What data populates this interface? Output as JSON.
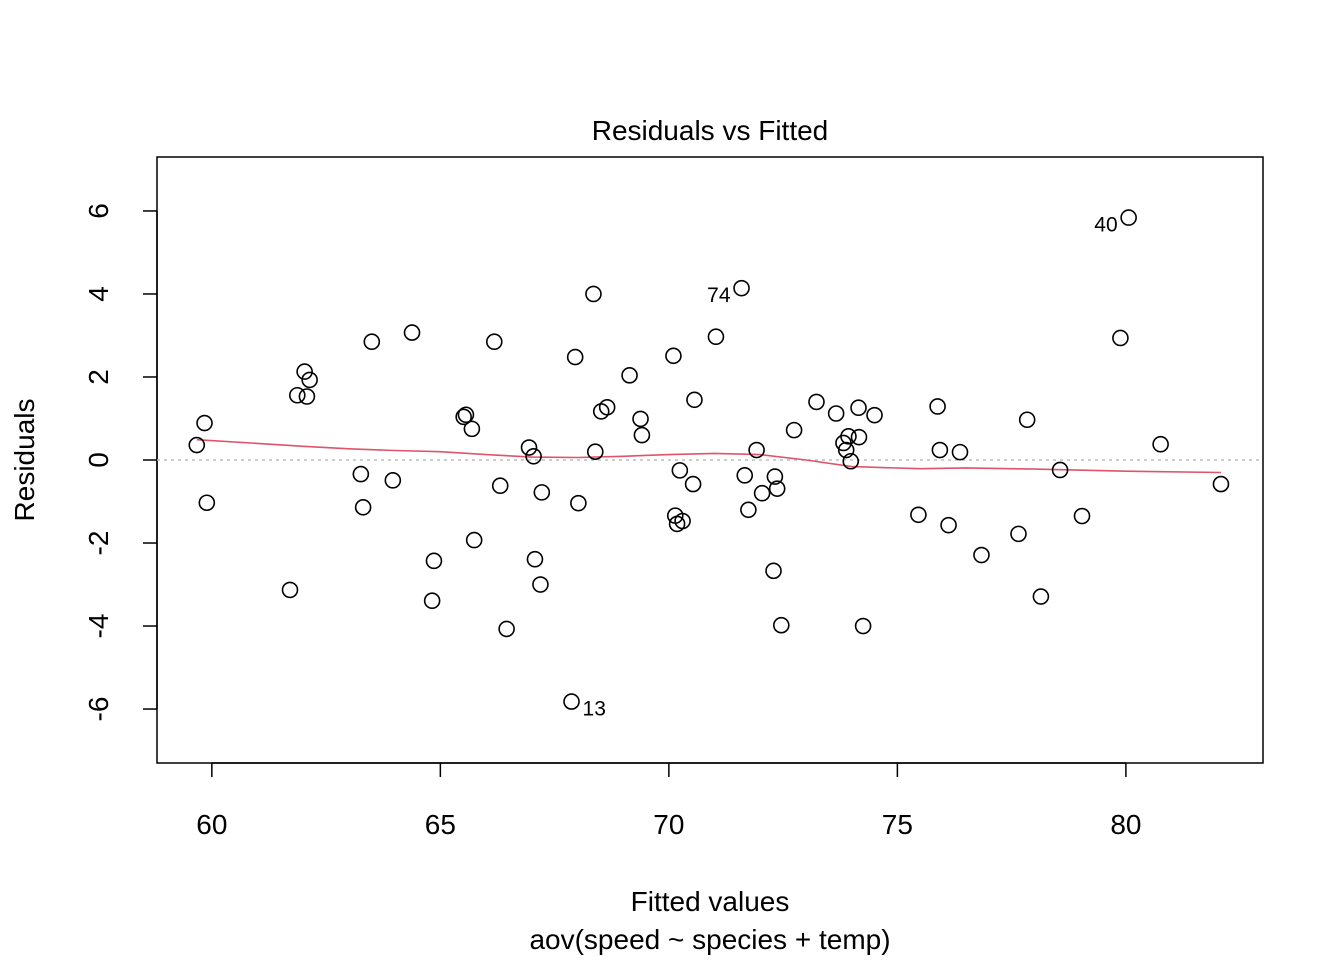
{
  "chart_data": {
    "type": "scatter",
    "title": "Residuals vs Fitted",
    "xlabel": "Fitted values",
    "subtitle": "aov(speed ~ species + temp)",
    "ylabel": "Residuals",
    "xlim": [
      58.8,
      83.0
    ],
    "ylim": [
      -7.3,
      7.3
    ],
    "xticks": [
      60,
      65,
      70,
      75,
      80
    ],
    "yticks": [
      -6,
      -4,
      -2,
      0,
      2,
      4,
      6
    ],
    "grid": false,
    "reference_line": {
      "y": 0,
      "style": "dotted",
      "color": "#bebebe"
    },
    "point_color": "#000000",
    "smooth_color": "#df536b",
    "points": [
      {
        "x": 59.67,
        "y": 0.36
      },
      {
        "x": 59.84,
        "y": 0.89
      },
      {
        "x": 59.89,
        "y": -1.03
      },
      {
        "x": 61.71,
        "y": -3.13
      },
      {
        "x": 61.87,
        "y": 1.56
      },
      {
        "x": 62.03,
        "y": 2.13
      },
      {
        "x": 62.08,
        "y": 1.53
      },
      {
        "x": 62.14,
        "y": 1.93
      },
      {
        "x": 63.26,
        "y": -0.34
      },
      {
        "x": 63.31,
        "y": -1.14
      },
      {
        "x": 63.5,
        "y": 2.85
      },
      {
        "x": 63.96,
        "y": -0.49
      },
      {
        "x": 64.38,
        "y": 3.07
      },
      {
        "x": 64.82,
        "y": -3.39
      },
      {
        "x": 64.86,
        "y": -2.43
      },
      {
        "x": 65.51,
        "y": 1.04
      },
      {
        "x": 65.56,
        "y": 1.09
      },
      {
        "x": 65.69,
        "y": 0.75
      },
      {
        "x": 65.74,
        "y": -1.93
      },
      {
        "x": 66.18,
        "y": 2.85
      },
      {
        "x": 66.31,
        "y": -0.62
      },
      {
        "x": 66.45,
        "y": -4.07
      },
      {
        "x": 66.94,
        "y": 0.3
      },
      {
        "x": 67.04,
        "y": 0.09
      },
      {
        "x": 67.07,
        "y": -2.39
      },
      {
        "x": 67.19,
        "y": -3.0
      },
      {
        "x": 67.22,
        "y": -0.78
      },
      {
        "x": 67.87,
        "y": -5.82,
        "label": "13"
      },
      {
        "x": 67.95,
        "y": 2.48
      },
      {
        "x": 68.02,
        "y": -1.04
      },
      {
        "x": 68.35,
        "y": 4.0
      },
      {
        "x": 68.39,
        "y": 0.2
      },
      {
        "x": 68.52,
        "y": 1.17
      },
      {
        "x": 68.65,
        "y": 1.27
      },
      {
        "x": 69.14,
        "y": 2.04
      },
      {
        "x": 69.38,
        "y": 0.99
      },
      {
        "x": 69.41,
        "y": 0.6
      },
      {
        "x": 70.1,
        "y": 2.51
      },
      {
        "x": 70.14,
        "y": -1.34
      },
      {
        "x": 70.18,
        "y": -1.54
      },
      {
        "x": 70.24,
        "y": -0.25
      },
      {
        "x": 70.3,
        "y": -1.47
      },
      {
        "x": 70.53,
        "y": -0.58
      },
      {
        "x": 70.56,
        "y": 1.45
      },
      {
        "x": 71.03,
        "y": 2.97
      },
      {
        "x": 71.59,
        "y": 4.14,
        "label": "74"
      },
      {
        "x": 71.66,
        "y": -0.37
      },
      {
        "x": 71.74,
        "y": -1.2
      },
      {
        "x": 71.92,
        "y": 0.24
      },
      {
        "x": 72.04,
        "y": -0.8
      },
      {
        "x": 72.29,
        "y": -2.67
      },
      {
        "x": 72.32,
        "y": -0.4
      },
      {
        "x": 72.37,
        "y": -0.69
      },
      {
        "x": 72.46,
        "y": -3.98
      },
      {
        "x": 72.74,
        "y": 0.72
      },
      {
        "x": 73.23,
        "y": 1.4
      },
      {
        "x": 73.66,
        "y": 1.12
      },
      {
        "x": 73.82,
        "y": 0.41
      },
      {
        "x": 73.88,
        "y": 0.24
      },
      {
        "x": 73.93,
        "y": 0.57
      },
      {
        "x": 73.98,
        "y": -0.03
      },
      {
        "x": 74.15,
        "y": 1.26
      },
      {
        "x": 74.16,
        "y": 0.55
      },
      {
        "x": 74.25,
        "y": -4.0
      },
      {
        "x": 74.5,
        "y": 1.08
      },
      {
        "x": 75.46,
        "y": -1.32
      },
      {
        "x": 75.88,
        "y": 1.29
      },
      {
        "x": 75.93,
        "y": 0.24
      },
      {
        "x": 76.12,
        "y": -1.57
      },
      {
        "x": 76.37,
        "y": 0.19
      },
      {
        "x": 76.84,
        "y": -2.29
      },
      {
        "x": 77.65,
        "y": -1.78
      },
      {
        "x": 77.84,
        "y": 0.97
      },
      {
        "x": 78.14,
        "y": -3.29
      },
      {
        "x": 78.56,
        "y": -0.24
      },
      {
        "x": 79.04,
        "y": -1.35
      },
      {
        "x": 79.88,
        "y": 2.94
      },
      {
        "x": 80.06,
        "y": 5.84,
        "label": "40"
      },
      {
        "x": 80.76,
        "y": 0.38
      },
      {
        "x": 82.08,
        "y": -0.58
      }
    ],
    "smooth": [
      {
        "x": 59.67,
        "y": 0.49
      },
      {
        "x": 61.0,
        "y": 0.4
      },
      {
        "x": 62.0,
        "y": 0.33
      },
      {
        "x": 63.0,
        "y": 0.27
      },
      {
        "x": 64.0,
        "y": 0.23
      },
      {
        "x": 65.0,
        "y": 0.2
      },
      {
        "x": 66.0,
        "y": 0.13
      },
      {
        "x": 67.0,
        "y": 0.07
      },
      {
        "x": 68.0,
        "y": 0.06
      },
      {
        "x": 69.0,
        "y": 0.09
      },
      {
        "x": 70.0,
        "y": 0.13
      },
      {
        "x": 71.0,
        "y": 0.16
      },
      {
        "x": 72.0,
        "y": 0.13
      },
      {
        "x": 73.0,
        "y": 0.0
      },
      {
        "x": 74.0,
        "y": -0.16
      },
      {
        "x": 75.5,
        "y": -0.21
      },
      {
        "x": 76.5,
        "y": -0.19
      },
      {
        "x": 78.0,
        "y": -0.22
      },
      {
        "x": 80.0,
        "y": -0.27
      },
      {
        "x": 82.08,
        "y": -0.3
      }
    ]
  }
}
